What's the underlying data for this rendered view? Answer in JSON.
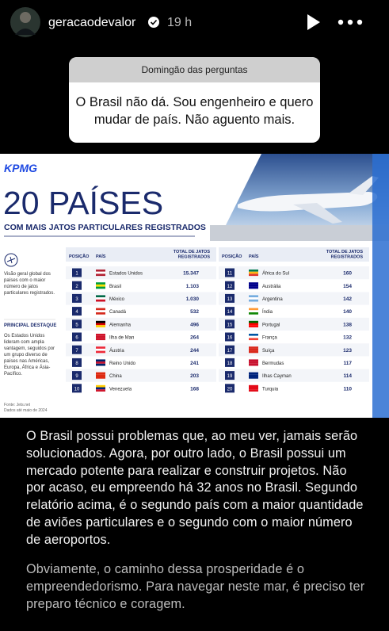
{
  "header": {
    "username": "geracaodevalor",
    "time": "19 h"
  },
  "question": {
    "title": "Domingão das perguntas",
    "text": "O Brasil não dá. Sou engenheiro e quero mudar de país. Não aguento mais."
  },
  "infographic": {
    "brand": "KPMG",
    "title": "20 PAÍSES",
    "subtitle": "COM MAIS JATOS PARTICULARES REGISTRADOS",
    "side_text": "Visão geral global dos países com o maior número de jatos particulares registrados.",
    "highlight_title": "PRINCIPAL DESTAQUE",
    "highlight_text": "Os Estados Unidos lideram com ampla vantagem, seguidos por um grupo diverso de países nas Américas, Europa, África e Ásia-Pacífico.",
    "source": "Fonte: Jets.net",
    "date": "Dados até maio de 2024",
    "table": {
      "columns": [
        "POSIÇÃO",
        "PAÍS",
        "TOTAL DE JATOS REGISTRADOS"
      ],
      "rows": [
        [
          1,
          "Estados Unidos",
          "15.347"
        ],
        [
          2,
          "Brasil",
          "1.103"
        ],
        [
          3,
          "México",
          "1.030"
        ],
        [
          4,
          "Canadá",
          532
        ],
        [
          5,
          "Alemanha",
          496
        ],
        [
          6,
          "Ilha de Man",
          264
        ],
        [
          7,
          "Áustria",
          244
        ],
        [
          8,
          "Reino Unido",
          241
        ],
        [
          9,
          "China",
          203
        ],
        [
          10,
          "Venezuela",
          168
        ],
        [
          11,
          "África do Sul",
          160
        ],
        [
          12,
          "Austrália",
          154
        ],
        [
          13,
          "Argentina",
          142
        ],
        [
          14,
          "Índia",
          140
        ],
        [
          15,
          "Portugal",
          138
        ],
        [
          16,
          "França",
          132
        ],
        [
          17,
          "Suíça",
          123
        ],
        [
          18,
          "Bermudas",
          117
        ],
        [
          19,
          "Ilhas Cayman",
          114
        ],
        [
          20,
          "Turquia",
          110
        ]
      ]
    }
  },
  "caption": {
    "paragraphs": [
      "O Brasil possui problemas que, ao meu ver, jamais serão solucionados. Agora, por outro lado, o Brasil possui um mercado potente para realizar e construir projetos. Não por acaso, eu empreendo há 32 anos no Brasil. Segundo relatório acima, é o segundo país com a maior quantidade de aviões particulares e o segundo com o maior número de aeroportos.",
      "Obviamente, o caminho dessa prosperidade é o empreendedorismo. Para navegar neste mar, é preciso ter preparo técnico e coragem."
    ]
  }
}
